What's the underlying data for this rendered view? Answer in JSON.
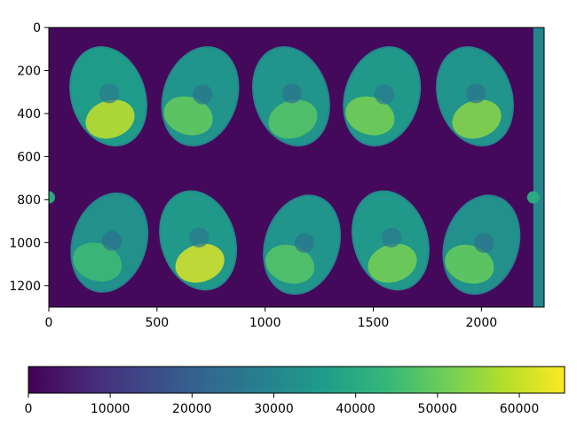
{
  "chart_data": {
    "type": "heatmap",
    "title": "",
    "xlabel": "",
    "ylabel": "",
    "xlim": [
      0,
      2290
    ],
    "ylim": [
      1300,
      0
    ],
    "x_ticks": [
      0,
      500,
      1000,
      1500,
      2000
    ],
    "y_ticks": [
      0,
      200,
      400,
      600,
      800,
      1000,
      1200
    ],
    "colormap": "viridis",
    "colorbar": {
      "orientation": "horizontal",
      "placement": "bottom",
      "range": [
        0,
        65535
      ],
      "ticks": [
        0,
        10000,
        20000,
        30000,
        40000,
        50000,
        60000
      ]
    },
    "grid": false,
    "background_value": 1500,
    "objects": [
      {
        "x": 275,
        "y": 320,
        "value": 36000,
        "bright_value": 60000
      },
      {
        "x": 700,
        "y": 320,
        "value": 34000,
        "bright_value": 50000
      },
      {
        "x": 1120,
        "y": 320,
        "value": 34000,
        "bright_value": 48000
      },
      {
        "x": 1540,
        "y": 320,
        "value": 35000,
        "bright_value": 52000
      },
      {
        "x": 1970,
        "y": 320,
        "value": 34000,
        "bright_value": 54000
      },
      {
        "x": 280,
        "y": 1000,
        "value": 33000,
        "bright_value": 45000
      },
      {
        "x": 690,
        "y": 990,
        "value": 35000,
        "bright_value": 62000
      },
      {
        "x": 1170,
        "y": 1010,
        "value": 34000,
        "bright_value": 48000
      },
      {
        "x": 1580,
        "y": 990,
        "value": 35000,
        "bright_value": 52000
      },
      {
        "x": 2000,
        "y": 1010,
        "value": 33000,
        "bright_value": 50000
      }
    ],
    "edge_strip": {
      "x_start": 2240,
      "x_end": 2290,
      "value": 30000
    },
    "edge_markers": [
      {
        "x": 0,
        "y": 790,
        "value": 40000
      },
      {
        "x": 2240,
        "y": 790,
        "value": 40000
      }
    ],
    "colors": {
      "viridis_stops": [
        "#440154",
        "#482878",
        "#3e4989",
        "#31688e",
        "#26828e",
        "#1f9e89",
        "#35b779",
        "#6ece58",
        "#b5de2b",
        "#fde725"
      ]
    }
  }
}
